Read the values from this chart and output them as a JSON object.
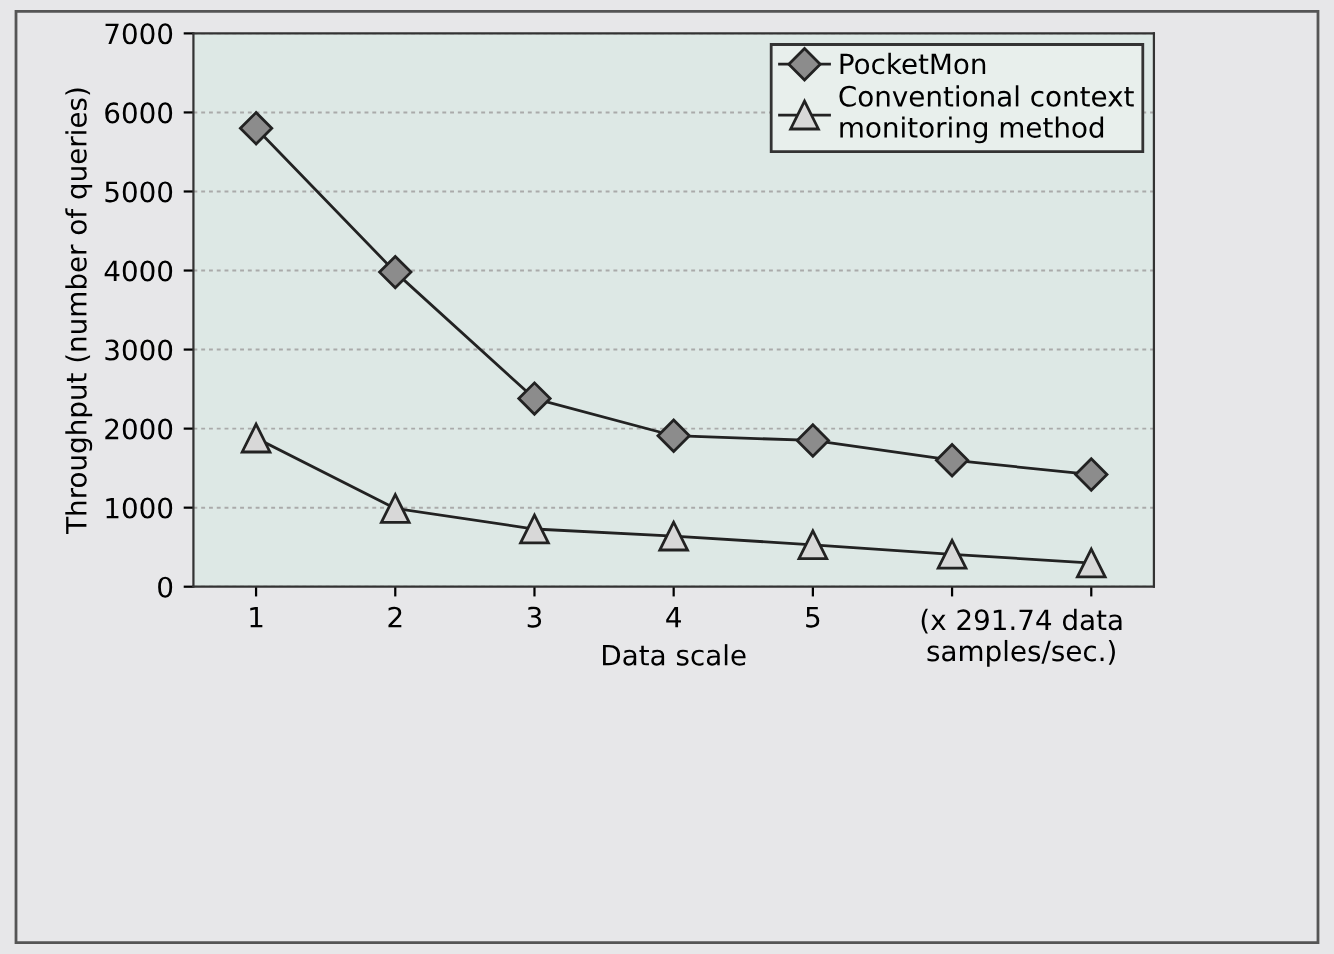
{
  "chart_data": {
    "type": "line",
    "xlabel": "Data scale",
    "ylabel": "Throughput (number of queries)",
    "categories": [
      "1",
      "2",
      "3",
      "4",
      "5",
      null,
      null
    ],
    "series": [
      {
        "name": "PocketMon",
        "color": "#8c8c8c",
        "marker": "diamond",
        "values": [
          5800,
          3980,
          2380,
          1910,
          1850,
          1600,
          1420
        ]
      },
      {
        "name": "Conventional context\nmonitoring method",
        "color": "#d8d8d8",
        "marker": "triangle",
        "values": [
          1880,
          990,
          730,
          640,
          530,
          410,
          300
        ]
      }
    ],
    "ylim": [
      0,
      7000
    ],
    "yticks": [
      0,
      1000,
      2000,
      3000,
      4000,
      5000,
      6000,
      7000
    ],
    "grid": "y",
    "legend": "top right",
    "line_style": "solid",
    "annotations": [
      "(x 291.74 data\nsamples/sec.)"
    ]
  }
}
